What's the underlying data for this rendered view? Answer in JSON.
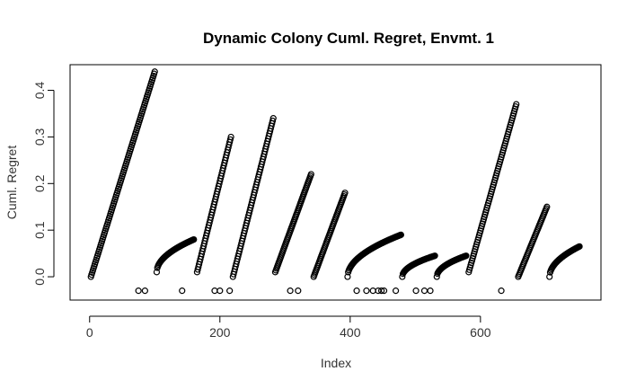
{
  "chart_data": {
    "type": "scatter",
    "title": "Dynamic Colony Cuml. Regret, Envmt. 1",
    "xlabel": "Index",
    "ylabel": "Cuml. Regret",
    "xlim": [
      -30,
      785
    ],
    "ylim": [
      -0.05,
      0.455
    ],
    "xticks": [
      0,
      200,
      400,
      600
    ],
    "yticks": [
      0.0,
      0.1,
      0.2,
      0.3,
      0.4
    ],
    "ytick_labels": [
      "0.0",
      "0.1",
      "0.2",
      "0.3",
      "0.4"
    ],
    "marker": "open-circle",
    "grid": false,
    "segments": [
      {
        "x_start": 2,
        "x_end": 100,
        "y_start": 0.0,
        "y_end": 0.44,
        "shape": "linear"
      },
      {
        "x_start": 103,
        "x_end": 160,
        "y_start": 0.01,
        "y_end": 0.08,
        "shape": "concave"
      },
      {
        "x_start": 165,
        "x_end": 217,
        "y_start": 0.01,
        "y_end": 0.3,
        "shape": "linear"
      },
      {
        "x_start": 220,
        "x_end": 282,
        "y_start": 0.0,
        "y_end": 0.34,
        "shape": "linear"
      },
      {
        "x_start": 285,
        "x_end": 340,
        "y_start": 0.01,
        "y_end": 0.22,
        "shape": "linear"
      },
      {
        "x_start": 344,
        "x_end": 392,
        "y_start": 0.0,
        "y_end": 0.18,
        "shape": "linear"
      },
      {
        "x_start": 396,
        "x_end": 478,
        "y_start": 0.0,
        "y_end": 0.09,
        "shape": "concave"
      },
      {
        "x_start": 480,
        "x_end": 530,
        "y_start": 0.0,
        "y_end": 0.045,
        "shape": "concave"
      },
      {
        "x_start": 533,
        "x_end": 578,
        "y_start": 0.0,
        "y_end": 0.045,
        "shape": "concave"
      },
      {
        "x_start": 582,
        "x_end": 655,
        "y_start": 0.01,
        "y_end": 0.37,
        "shape": "linear"
      },
      {
        "x_start": 658,
        "x_end": 702,
        "y_start": 0.0,
        "y_end": 0.15,
        "shape": "linear"
      },
      {
        "x_start": 706,
        "x_end": 752,
        "y_start": 0.0,
        "y_end": 0.065,
        "shape": "concave"
      }
    ],
    "outliers": [
      {
        "x": 75,
        "y": -0.03
      },
      {
        "x": 85,
        "y": -0.03
      },
      {
        "x": 142,
        "y": -0.03
      },
      {
        "x": 192,
        "y": -0.03
      },
      {
        "x": 200,
        "y": -0.03
      },
      {
        "x": 215,
        "y": -0.03
      },
      {
        "x": 308,
        "y": -0.03
      },
      {
        "x": 320,
        "y": -0.03
      },
      {
        "x": 410,
        "y": -0.03
      },
      {
        "x": 425,
        "y": -0.03
      },
      {
        "x": 435,
        "y": -0.03
      },
      {
        "x": 443,
        "y": -0.03
      },
      {
        "x": 448,
        "y": -0.03
      },
      {
        "x": 452,
        "y": -0.03
      },
      {
        "x": 470,
        "y": -0.03
      },
      {
        "x": 501,
        "y": -0.03
      },
      {
        "x": 514,
        "y": -0.03
      },
      {
        "x": 523,
        "y": -0.03
      },
      {
        "x": 632,
        "y": -0.03
      }
    ]
  }
}
